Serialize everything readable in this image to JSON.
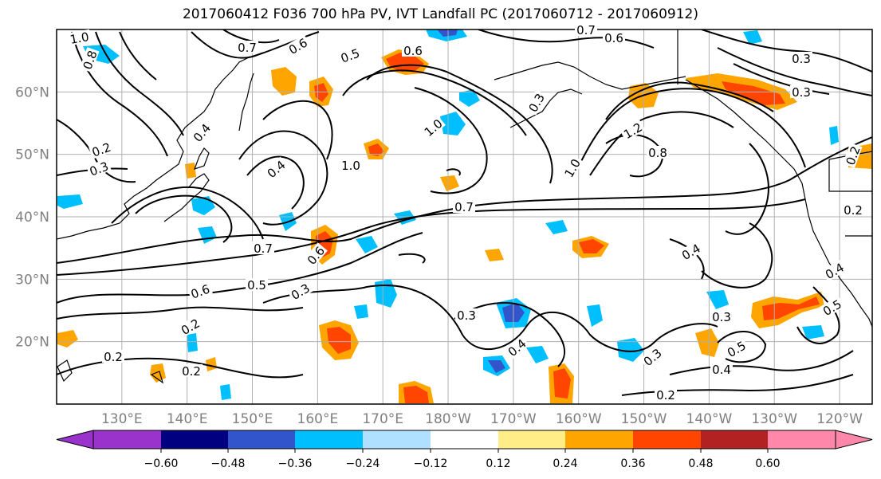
{
  "title": "2017060412 F036 700 hPa PV, IVT Landfall PC (2017060712 - 2017060912)",
  "map": {
    "lat_labels": [
      "60°N",
      "50°N",
      "40°N",
      "30°N",
      "20°N"
    ],
    "lat_values": [
      60,
      50,
      40,
      30,
      20
    ],
    "lon_labels": [
      "130°E",
      "140°E",
      "150°E",
      "160°E",
      "170°E",
      "180°W",
      "170°W",
      "160°W",
      "150°W",
      "140°W",
      "130°W",
      "120°W"
    ],
    "lon_values": [
      130,
      140,
      150,
      160,
      170,
      180,
      190,
      200,
      210,
      220,
      230,
      240
    ],
    "lon_range": [
      120,
      245
    ],
    "lat_range": [
      10,
      70
    ],
    "contour_labels": [
      "1.0",
      "0.7",
      "0.6",
      "0.5",
      "0.6",
      "1.0",
      "0.7",
      "0.6",
      "0.3",
      "0.8",
      "1.2",
      "0.8",
      "1.0",
      "0.3",
      "0.2",
      "0.3",
      "0.4",
      "0.4",
      "0.7",
      "0.6",
      "0.5",
      "0.6",
      "0.3",
      "1.0",
      "0.7",
      "0.2",
      "0.2",
      "0.3",
      "0.4",
      "0.4",
      "0.3",
      "0.3",
      "0.5",
      "0.4",
      "0.2",
      "0.5",
      "0.4",
      "0.2",
      "0.2",
      "0.2",
      "0.3"
    ]
  },
  "colorbar": {
    "ticks": [
      "−0.60",
      "−0.48",
      "−0.36",
      "−0.24",
      "−0.12",
      "0.12",
      "0.24",
      "0.36",
      "0.48",
      "0.60"
    ],
    "colors": [
      "#9933cc",
      "#000080",
      "#3355cc",
      "#00bfff",
      "#b0e0ff",
      "#ffffff",
      "#ffee88",
      "#ffa500",
      "#ff4500",
      "#b22222",
      "#ff88aa"
    ]
  },
  "colors": {
    "contour": "#000000",
    "grid": "#b0b0b0",
    "coast": "#000000"
  }
}
